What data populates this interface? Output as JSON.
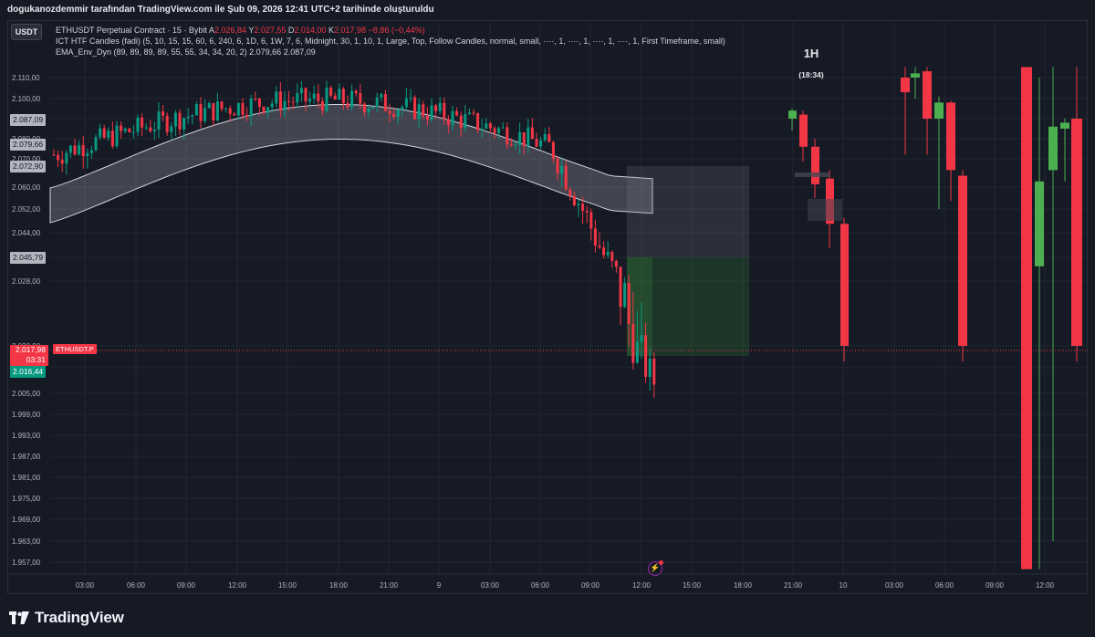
{
  "header": {
    "title": "dogukanozdemmir tarafından TradingView.com ile Şub 09, 2026 12:41 UTC+2 tarihinde oluşturuldu"
  },
  "toolbar": {
    "currency_button": "USDT"
  },
  "legend": {
    "symbol": "ETHUSDT Perpetual Contract · 15 · Bybit",
    "o_key": "A",
    "o_val": "2.026,84",
    "h_key": "Y",
    "h_val": "2.027,55",
    "l_key": "D",
    "l_val": "2.014,00",
    "c_key": "K",
    "c_val": "2.017,98",
    "change": "−8,86 (−0,44%)",
    "indicator_1": "ICT HTF Candles (fadi) (5, 10, 15, 15, 60, 6, 240, 6, 1D, 6, 1W, 7, 6, Midnight, 30, 1, 10, 1, Large, Top, Follow Candles, normal, small, ····, 1, ····, 1, ····, 1, ····, 1, First Timeframe, small)",
    "indicator_2_name": "EMA_Env_Dyn (89, 89, 89, 89, 55, 55, 34, 34, 20, 2)",
    "indicator_2_val1": "2.079,66",
    "indicator_2_val2": "2.087,09"
  },
  "price_tags": {
    "upper_band": "2.087,09",
    "lower_band": "2.079,66",
    "band_mid": "2.072,90",
    "zone_level": "2.045,79",
    "last_price": "2.017,98",
    "countdown": "03:31",
    "bid": "2.016,44",
    "symbol_label": "ETHUSDT.P"
  },
  "htf": {
    "timeframe": "1H",
    "countdown": "(18:34)"
  },
  "footer": {
    "brand": "TradingView"
  },
  "colors": {
    "up": "#4caf50",
    "down": "#f23645",
    "background": "#161a25",
    "grid": "#222630",
    "band": "#b2b5be"
  },
  "chart_data": {
    "type": "candlestick",
    "symbol": "ETHUSDT Perpetual Contract",
    "timeframe": "15",
    "exchange": "Bybit",
    "y_axis_labels": [
      "2.110,00",
      "2.100,00",
      "2.090,00",
      "2.080,00",
      "2.070,00",
      "2.060,00",
      "2.052,00",
      "2.044,00",
      "2.036,00",
      "2.028,00",
      "2.020,00",
      "2.013,00",
      "2.005,00",
      "1.999,00",
      "1.993,00",
      "1.987,00",
      "1.981,00",
      "1.975,00",
      "1.969,00",
      "1.963,00",
      "1.957,00"
    ],
    "y_axis_values": [
      2110,
      2100,
      2090,
      2080,
      2070,
      2060,
      2052,
      2044,
      2036,
      2028,
      2020,
      2013,
      2005,
      1999,
      1993,
      1987,
      1981,
      1975,
      1969,
      1963,
      1957
    ],
    "x_axis_labels": [
      "03:00",
      "06:00",
      "09:00",
      "12:00",
      "15:00",
      "18:00",
      "21:00",
      "9",
      "03:00",
      "06:00",
      "09:00",
      "12:00",
      "15:00",
      "18:00",
      "21:00",
      "10",
      "03:00",
      "06:00",
      "09:00",
      "12:00"
    ],
    "ohlc": [],
    "htf_candles": [
      {
        "o": 2094,
        "h": 2095,
        "l": 2084,
        "c": 2090,
        "dir": "up"
      },
      {
        "o": 2092,
        "h": 2094,
        "l": 2069,
        "c": 2076,
        "dir": "down"
      },
      {
        "o": 2076,
        "h": 2080,
        "l": 2056,
        "c": 2061,
        "dir": "down"
      },
      {
        "o": 2063,
        "h": 2066,
        "l": 2039,
        "c": 2047,
        "dir": "down"
      },
      {
        "o": 2047,
        "h": 2049,
        "l": 2015,
        "c": 2020,
        "dir": "down"
      }
    ],
    "htf_candles_right": [
      {
        "o": 2110,
        "h": 2115,
        "l": 2072,
        "c": 2103,
        "dir": "down"
      },
      {
        "o": 2110,
        "h": 2115,
        "l": 2100,
        "c": 2112,
        "dir": "up"
      },
      {
        "o": 2113,
        "h": 2115,
        "l": 2072,
        "c": 2090,
        "dir": "down"
      },
      {
        "o": 2098,
        "h": 2101,
        "l": 2052,
        "c": 2090,
        "dir": "up"
      },
      {
        "o": 2098,
        "h": 2099,
        "l": 2055,
        "c": 2066,
        "dir": "down"
      },
      {
        "o": 2064,
        "h": 2066,
        "l": 2015,
        "c": 2020,
        "dir": "down"
      },
      {
        "o": 2115,
        "h": 2115,
        "l": 1955,
        "c": 1955,
        "dir": "down"
      },
      {
        "o": 2033,
        "h": 2110,
        "l": 1955,
        "c": 2062,
        "dir": "up"
      },
      {
        "o": 2066,
        "h": 2115,
        "l": 1963,
        "c": 2086,
        "dir": "up"
      },
      {
        "o": 2085,
        "h": 2090,
        "l": 2062,
        "c": 2088,
        "dir": "up"
      },
      {
        "o": 2090,
        "h": 2115,
        "l": 2015,
        "c": 2020,
        "dir": "down"
      }
    ]
  }
}
